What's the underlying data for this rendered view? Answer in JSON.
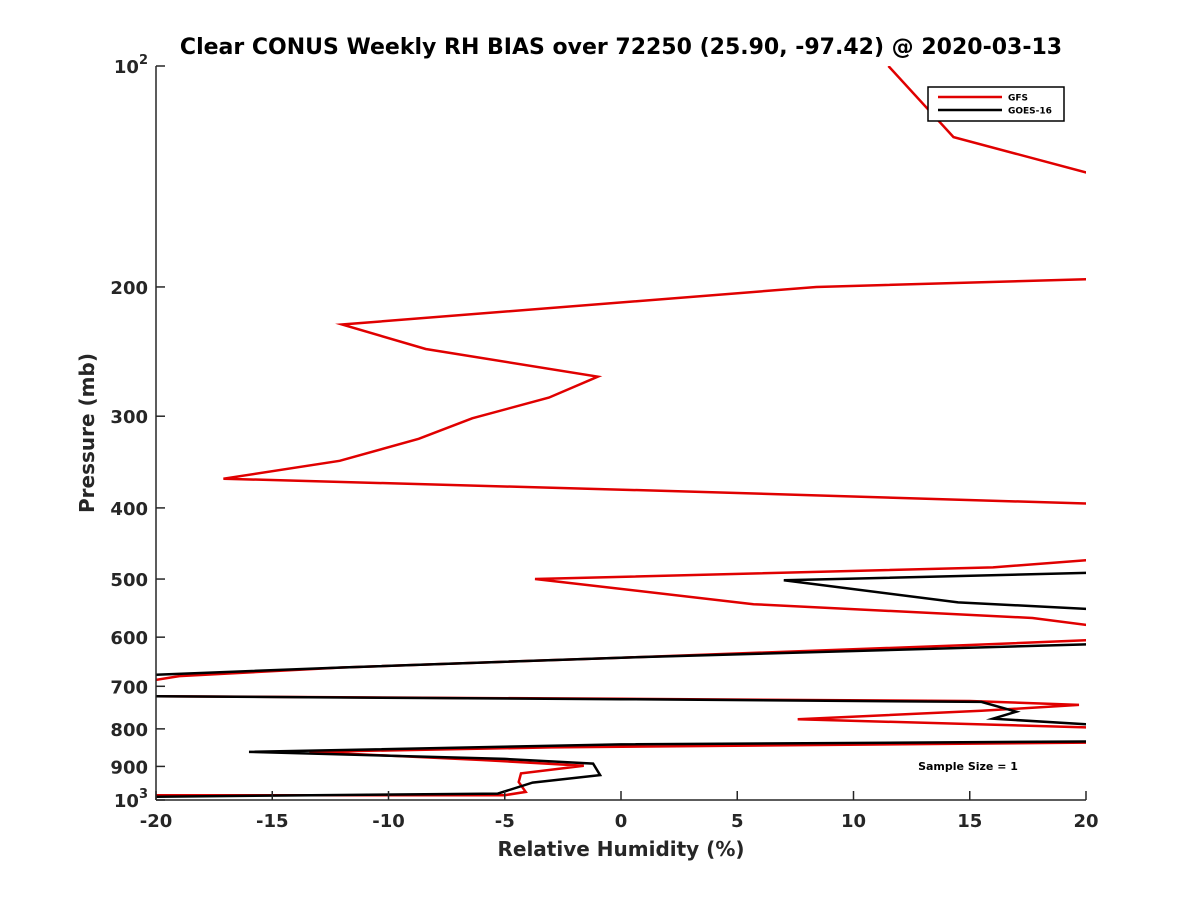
{
  "chart_data": {
    "type": "line",
    "title": "Clear CONUS Weekly RH BIAS over 72250 (25.90, -97.42) @ 2020-03-13",
    "xlabel": "Relative Humidity (%)",
    "ylabel": "Pressure (mb)",
    "xlim": [
      -20,
      20
    ],
    "ylim": [
      100,
      1000
    ],
    "yscale": "log",
    "y_reversed": true,
    "xticks": [
      -20,
      -15,
      -10,
      -5,
      0,
      5,
      10,
      15,
      20
    ],
    "xtick_labels": [
      "-20",
      "-15",
      "-10",
      "-5",
      "0",
      "5",
      "10",
      "15",
      "20"
    ],
    "yticks": [
      100,
      200,
      300,
      400,
      500,
      600,
      700,
      800,
      900,
      1000
    ],
    "ytick_labels": [
      {
        "base": "10",
        "exp": "2"
      },
      {
        "base": "200",
        "exp": ""
      },
      {
        "base": "300",
        "exp": ""
      },
      {
        "base": "400",
        "exp": ""
      },
      {
        "base": "500",
        "exp": ""
      },
      {
        "base": "600",
        "exp": ""
      },
      {
        "base": "700",
        "exp": ""
      },
      {
        "base": "800",
        "exp": ""
      },
      {
        "base": "900",
        "exp": ""
      },
      {
        "base": "10",
        "exp": "3"
      }
    ],
    "legend_position": "top-right",
    "annotation": "Sample Size = 1",
    "series": [
      {
        "name": "GFS",
        "color": "#e00000",
        "points": [
          [
            11.5,
            100
          ],
          [
            14.3,
            125
          ],
          [
            20.5,
            141
          ],
          [
            20.5,
            195
          ],
          [
            8.4,
            200
          ],
          [
            -12.0,
            225
          ],
          [
            -8.4,
            243
          ],
          [
            -1.0,
            265
          ],
          [
            -3.1,
            283
          ],
          [
            -6.4,
            302
          ],
          [
            -8.7,
            322
          ],
          [
            -12.1,
            345
          ],
          [
            -17.1,
            365
          ],
          [
            3.0,
            380
          ],
          [
            20.5,
            395
          ],
          [
            20.5,
            470
          ],
          [
            16.0,
            482
          ],
          [
            -3.7,
            500
          ],
          [
            5.7,
            541
          ],
          [
            17.7,
            565
          ],
          [
            20.5,
            580
          ],
          [
            20.5,
            605
          ],
          [
            15.0,
            615
          ],
          [
            0.0,
            640
          ],
          [
            -12.0,
            660
          ],
          [
            -19.0,
            678
          ],
          [
            -20.5,
            690
          ],
          [
            -20.5,
            722
          ],
          [
            0.0,
            728
          ],
          [
            15.0,
            733
          ],
          [
            19.7,
            742
          ],
          [
            15.5,
            756
          ],
          [
            7.6,
            776
          ],
          [
            20.5,
            797
          ],
          [
            20.5,
            835
          ],
          [
            -3.0,
            848
          ],
          [
            -13.4,
            860
          ],
          [
            -6.0,
            882
          ],
          [
            -1.6,
            898
          ],
          [
            -4.3,
            920
          ],
          [
            -4.4,
            945
          ],
          [
            -4.1,
            975
          ],
          [
            -5.0,
            985
          ],
          [
            -20.5,
            985
          ]
        ]
      },
      {
        "name": "GOES-16",
        "color": "#000000",
        "points": [
          [
            20.5,
            490
          ],
          [
            7.0,
            502
          ],
          [
            14.5,
            538
          ],
          [
            20.5,
            550
          ],
          [
            20.5,
            613
          ],
          [
            0.0,
            640
          ],
          [
            -12.0,
            660
          ],
          [
            -20.5,
            676
          ],
          [
            -20.5,
            722
          ],
          [
            0.0,
            729
          ],
          [
            15.5,
            735
          ],
          [
            17.0,
            758
          ],
          [
            16.0,
            775
          ],
          [
            20.5,
            790
          ],
          [
            20.5,
            832
          ],
          [
            0.0,
            840
          ],
          [
            -16.0,
            860
          ],
          [
            -5.0,
            879
          ],
          [
            -1.2,
            892
          ],
          [
            -0.9,
            925
          ],
          [
            -3.8,
            947
          ],
          [
            -5.3,
            980
          ],
          [
            -20.5,
            990
          ]
        ]
      }
    ]
  }
}
